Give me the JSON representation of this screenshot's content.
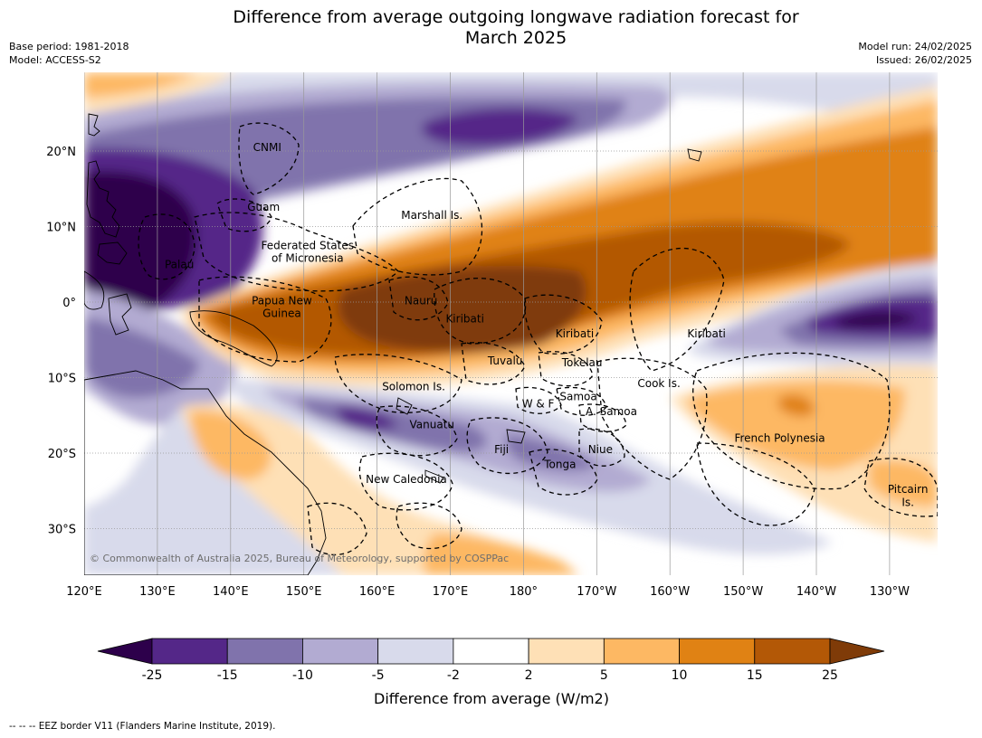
{
  "title_line1": "Difference from average outgoing longwave radiation forecast for",
  "title_line2": "March 2025",
  "base_period": "Base period: 1981-2018",
  "model": "Model: ACCESS-S2",
  "model_run": "Model run: 24/02/2025",
  "issued": "Issued: 26/02/2025",
  "copyright": "© Commonwealth of Australia 2025, Bureau of Meteorology, supported by COSPPac",
  "footer": "--  --  -- EEZ border V11 (Flanders Marine Institute, 2019).",
  "map": {
    "lat_labels": [
      "20°N",
      "10°N",
      "0°",
      "10°S",
      "20°S",
      "30°S"
    ],
    "lon_labels": [
      "120°E",
      "130°E",
      "140°E",
      "150°E",
      "160°E",
      "170°E",
      "180°",
      "170°W",
      "160°W",
      "150°W",
      "140°W",
      "130°W"
    ],
    "place_labels": [
      {
        "text": "CNMI",
        "lon": 145.0,
        "lat": 20.5
      },
      {
        "text": "Guam",
        "lon": 144.5,
        "lat": 12.6
      },
      {
        "text": "Marshall Is.",
        "lon": 167.5,
        "lat": 11.5
      },
      {
        "text": "Federated States",
        "lon": 150.5,
        "lat": 7.5
      },
      {
        "text": "of Micronesia",
        "lon": 150.5,
        "lat": 5.8
      },
      {
        "text": "Palau",
        "lon": 133.0,
        "lat": 5.0
      },
      {
        "text": "Papua New",
        "lon": 147.0,
        "lat": 0.2
      },
      {
        "text": "Guinea",
        "lon": 147.0,
        "lat": -1.5
      },
      {
        "text": "Nauru",
        "lon": 166.0,
        "lat": 0.2
      },
      {
        "text": "Kiribati",
        "lon": 172.0,
        "lat": -2.2
      },
      {
        "text": "Kiribati",
        "lon": -173.0,
        "lat": -4.2
      },
      {
        "text": "Kiribati",
        "lon": -155.0,
        "lat": -4.2
      },
      {
        "text": "Tuvalu",
        "lon": 177.5,
        "lat": -7.8
      },
      {
        "text": "Tokelau",
        "lon": -172.0,
        "lat": -8.0
      },
      {
        "text": "Cook Is.",
        "lon": -161.5,
        "lat": -10.8
      },
      {
        "text": "Solomon Is.",
        "lon": 165.0,
        "lat": -11.2
      },
      {
        "text": "Samoa",
        "lon": -172.5,
        "lat": -12.5
      },
      {
        "text": "W & F",
        "lon": -178.0,
        "lat": -13.5
      },
      {
        "text": "A. Samoa",
        "lon": -168.0,
        "lat": -14.5
      },
      {
        "text": "Vanuatu",
        "lon": 167.5,
        "lat": -16.2
      },
      {
        "text": "French Polynesia",
        "lon": -145.0,
        "lat": -18.0
      },
      {
        "text": "Fiji",
        "lon": 177.0,
        "lat": -19.5
      },
      {
        "text": "Niue",
        "lon": -169.5,
        "lat": -19.5
      },
      {
        "text": "Tonga",
        "lon": -175.0,
        "lat": -21.5
      },
      {
        "text": "New Caledonia",
        "lon": 164.0,
        "lat": -23.5
      },
      {
        "text": "Pitcairn",
        "lon": -127.5,
        "lat": -24.8
      },
      {
        "text": "Is.",
        "lon": -127.5,
        "lat": -26.5
      }
    ]
  },
  "colorbar": {
    "label": "Difference from average (W/m2)",
    "tick_labels": [
      "-25",
      "-15",
      "-10",
      "-5",
      "-2",
      "2",
      "5",
      "10",
      "15",
      "25"
    ],
    "colors": {
      "below_min": "#2d004b",
      "bins": [
        "#542788",
        "#8073ac",
        "#b2abd2",
        "#d8daeb",
        "#ffffff",
        "#fee0b6",
        "#fdb863",
        "#e08214",
        "#b35806"
      ],
      "above_max": "#7f3b08"
    }
  }
}
